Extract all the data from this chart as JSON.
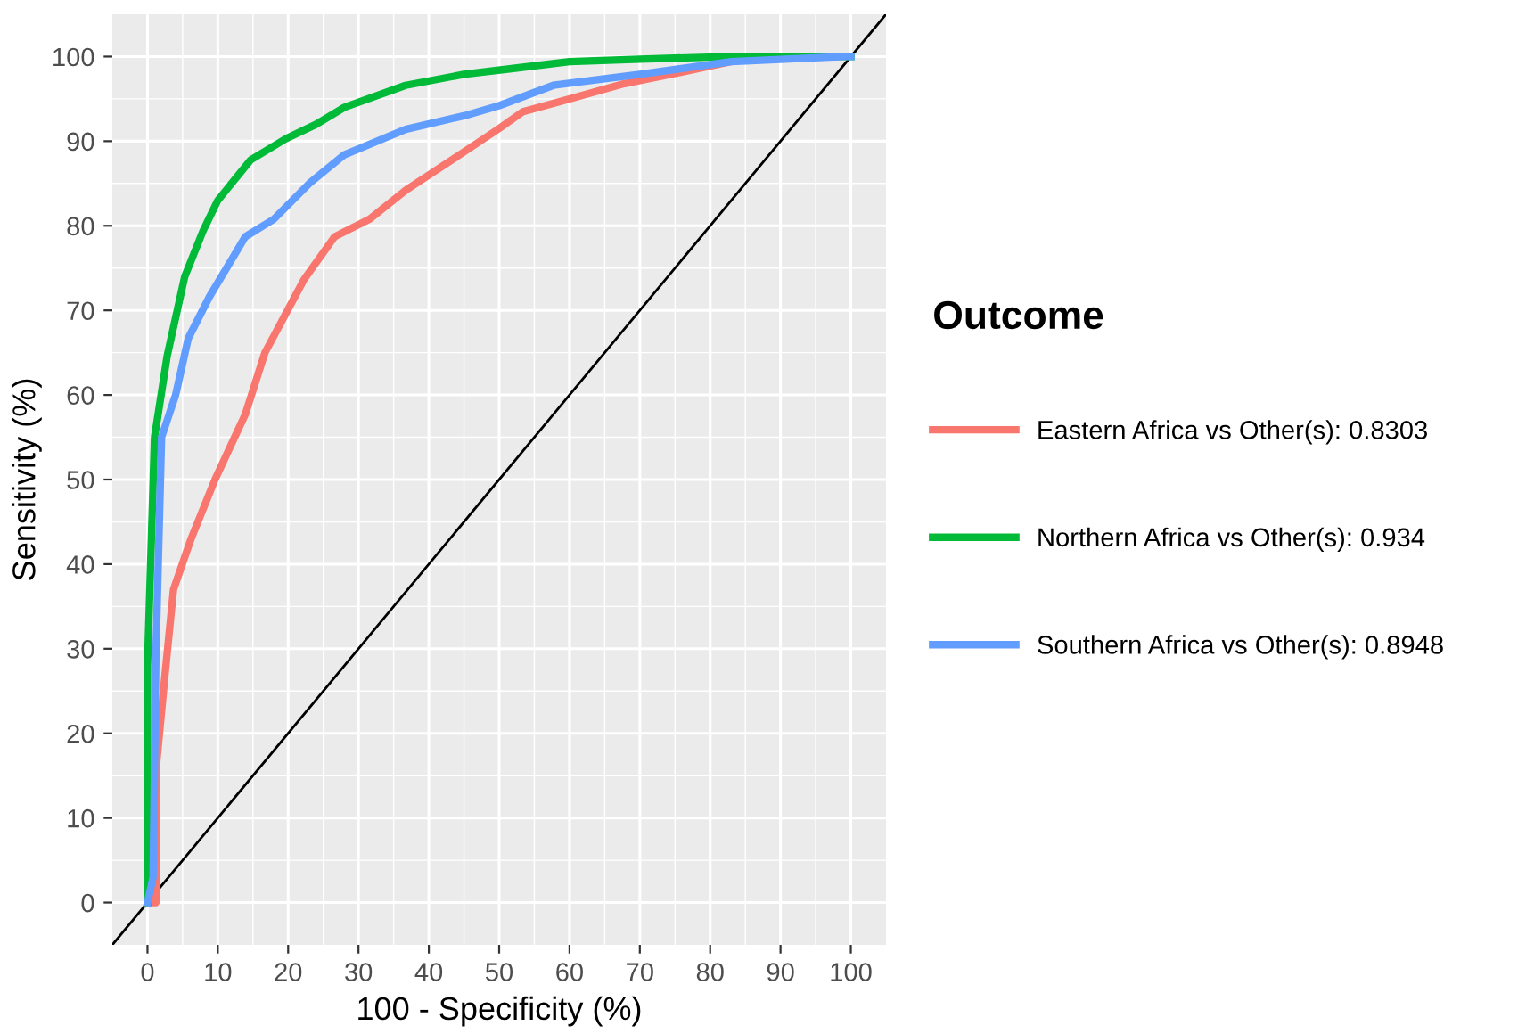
{
  "chart_data": {
    "type": "line",
    "xlabel": "100 - Specificity (%)",
    "ylabel": "Sensitivity (%)",
    "legend_title": "Outcome",
    "legend": "right",
    "grid": true,
    "xlim": [
      -5,
      105
    ],
    "ylim": [
      -5,
      105
    ],
    "xticks": [
      0,
      10,
      20,
      30,
      40,
      50,
      60,
      70,
      80,
      90,
      100
    ],
    "yticks": [
      0,
      10,
      20,
      30,
      40,
      50,
      60,
      70,
      80,
      90,
      100
    ],
    "series": [
      {
        "name": "Eastern Africa vs Other(s): 0.8303",
        "color": "#f8766d",
        "x": [
          0,
          1.2,
          1.2,
          2.5,
          3.7,
          6.2,
          9.6,
          13.9,
          16.7,
          22.3,
          26.6,
          31.6,
          36.7,
          43.3,
          50,
          53.4,
          60,
          67.8,
          75,
          83
        ],
        "values": [
          0,
          0,
          15.6,
          27,
          37,
          43,
          50,
          57.7,
          65,
          73.7,
          78.7,
          80.8,
          84.2,
          87.8,
          91.5,
          93.5,
          95,
          96.8,
          98,
          99.4
        ]
      },
      {
        "name": "Northern Africa vs Other(s): 0.934",
        "color": "#00ba38",
        "x": [
          0,
          0,
          1,
          2.8,
          3.7,
          5.3,
          7.9,
          10,
          14.7,
          19.7,
          24,
          28,
          36.7,
          45,
          52,
          60,
          70,
          83,
          100
        ],
        "values": [
          0,
          28,
          55,
          64.6,
          68,
          74,
          79.4,
          83,
          87.8,
          90.3,
          92,
          94,
          96.6,
          97.9,
          98.6,
          99.4,
          99.7,
          100,
          100
        ]
      },
      {
        "name": "Southern Africa vs Other(s): 0.8948",
        "color": "#619cff",
        "x": [
          0,
          0.8,
          1.2,
          2,
          4,
          5.8,
          8.8,
          13.9,
          18,
          23,
          28,
          36.7,
          45,
          50,
          57.7,
          70,
          83,
          99,
          100
        ],
        "values": [
          0,
          3,
          29.5,
          55,
          60,
          66.7,
          71.6,
          78.7,
          80.8,
          85,
          88.4,
          91.4,
          93,
          94.2,
          96.6,
          97.9,
          99.4,
          100,
          100
        ]
      },
      {
        "type": "line",
        "color": "#000000",
        "x": [
          -5,
          105
        ],
        "values": [
          -5,
          105
        ]
      }
    ]
  }
}
